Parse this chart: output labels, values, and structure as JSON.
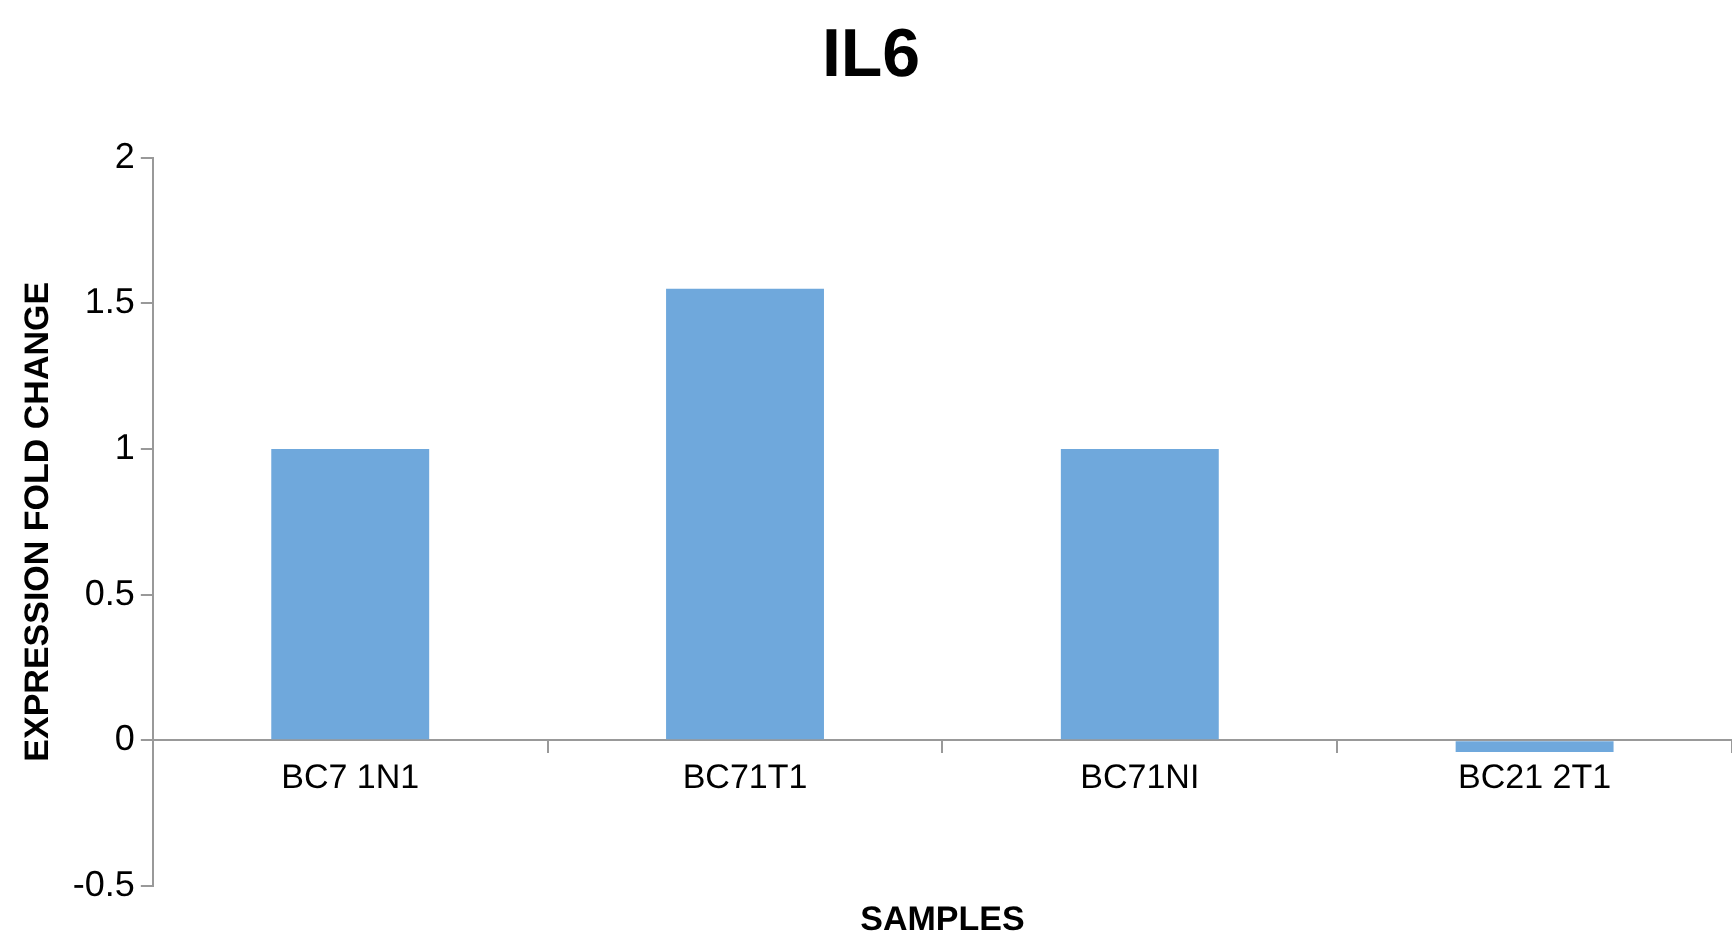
{
  "chart_data": {
    "type": "bar",
    "title": "IL6",
    "xlabel": "SAMPLES",
    "ylabel": "EXPRESSION FOLD CHANGE",
    "categories": [
      "BC7 1N1",
      "BC71T1",
      "BC71NI",
      "BC21 2T1"
    ],
    "values": [
      1,
      1.55,
      1,
      -0.04
    ],
    "color": "#6fa8dc",
    "ylim": [
      -0.5,
      2
    ],
    "yticks": [
      -0.5,
      0,
      0.5,
      1,
      1.5,
      2
    ],
    "grid": false,
    "legend": false
  }
}
